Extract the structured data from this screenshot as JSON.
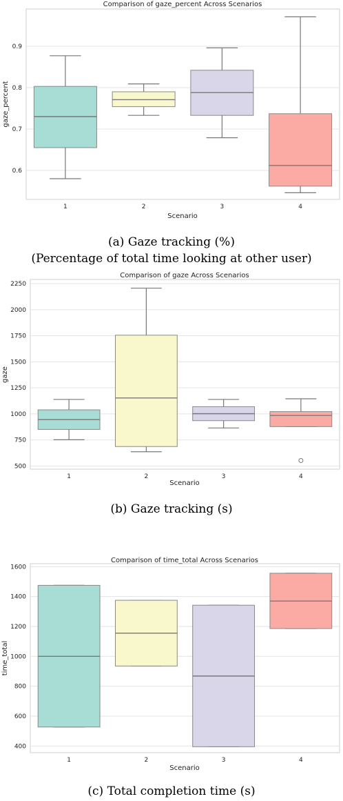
{
  "chart_data": [
    {
      "type": "box",
      "title": "Comparison of gaze_percent Across Scenarios",
      "xlabel": "Scenario",
      "ylabel": "gaze_percent",
      "categories": [
        "1",
        "2",
        "3",
        "4"
      ],
      "ylim": [
        0.53,
        0.99
      ],
      "yticks": [
        0.6,
        0.7,
        0.8,
        0.9
      ],
      "ytick_labels": [
        "0.6",
        "0.7",
        "0.8",
        "0.9"
      ],
      "boxes": [
        {
          "category": "1",
          "whisker_low": 0.58,
          "q1": 0.655,
          "median": 0.73,
          "q3": 0.803,
          "whisker_high": 0.877
        },
        {
          "category": "2",
          "whisker_low": 0.733,
          "q1": 0.754,
          "median": 0.771,
          "q3": 0.79,
          "whisker_high": 0.809
        },
        {
          "category": "3",
          "whisker_low": 0.679,
          "q1": 0.733,
          "median": 0.788,
          "q3": 0.842,
          "whisker_high": 0.896
        },
        {
          "category": "4",
          "whisker_low": 0.546,
          "q1": 0.562,
          "median": 0.612,
          "q3": 0.737,
          "whisker_high": 0.971
        }
      ],
      "colors": [
        "#a7ddd5",
        "#f9f7cc",
        "#d8d6e8",
        "#fcaba4"
      ],
      "grid": true,
      "caption_lines": [
        "(a) Gaze tracking (%)",
        "(Percentage of total time looking at other user)"
      ]
    },
    {
      "type": "box",
      "title": "Comparison of gaze Across Scenarios",
      "xlabel": "Scenario",
      "ylabel": "gaze",
      "categories": [
        "1",
        "2",
        "3",
        "4"
      ],
      "ylim": [
        470,
        2290
      ],
      "yticks": [
        500,
        750,
        1000,
        1250,
        1500,
        1750,
        2000,
        2250
      ],
      "ytick_labels": [
        "500",
        "750",
        "1000",
        "1250",
        "1500",
        "1750",
        "2000",
        "2250"
      ],
      "boxes": [
        {
          "category": "1",
          "whisker_low": 752,
          "q1": 851,
          "median": 945,
          "q3": 1039,
          "whisker_high": 1139
        },
        {
          "category": "2",
          "whisker_low": 637,
          "q1": 687,
          "median": 1153,
          "q3": 1755,
          "whisker_high": 2206
        },
        {
          "category": "3",
          "whisker_low": 865,
          "q1": 935,
          "median": 1002,
          "q3": 1069,
          "whisker_high": 1139
        },
        {
          "category": "4",
          "whisker_low": 878,
          "q1": 878,
          "median": 985,
          "q3": 1022,
          "whisker_high": 1145,
          "outliers": [
            553
          ]
        }
      ],
      "colors": [
        "#a7ddd5",
        "#f9f7cc",
        "#d8d6e8",
        "#fcaba4"
      ],
      "grid": true,
      "caption_lines": [
        "(b) Gaze tracking (s)"
      ]
    },
    {
      "type": "box",
      "title": "Comparison of time_total Across Scenarios",
      "xlabel": "Scenario",
      "ylabel": "time_total",
      "categories": [
        "1",
        "2",
        "3",
        "4"
      ],
      "ylim": [
        355,
        1620
      ],
      "yticks": [
        400,
        600,
        800,
        1000,
        1200,
        1400,
        1600
      ],
      "ytick_labels": [
        "400",
        "600",
        "800",
        "1000",
        "1200",
        "1400",
        "1600"
      ],
      "boxes": [
        {
          "category": "1",
          "whisker_low": 527,
          "q1": 527,
          "median": 1000,
          "q3": 1475,
          "whisker_high": 1475
        },
        {
          "category": "2",
          "whisker_low": 935,
          "q1": 935,
          "median": 1155,
          "q3": 1375,
          "whisker_high": 1375
        },
        {
          "category": "3",
          "whisker_low": 395,
          "q1": 395,
          "median": 868,
          "q3": 1342,
          "whisker_high": 1342
        },
        {
          "category": "4",
          "whisker_low": 1186,
          "q1": 1186,
          "median": 1370,
          "q3": 1556,
          "whisker_high": 1556
        }
      ],
      "colors": [
        "#a7ddd5",
        "#f9f7cc",
        "#d8d6e8",
        "#fcaba4"
      ],
      "grid": true,
      "caption_lines": [
        "(c) Total completion time (s)"
      ]
    }
  ]
}
